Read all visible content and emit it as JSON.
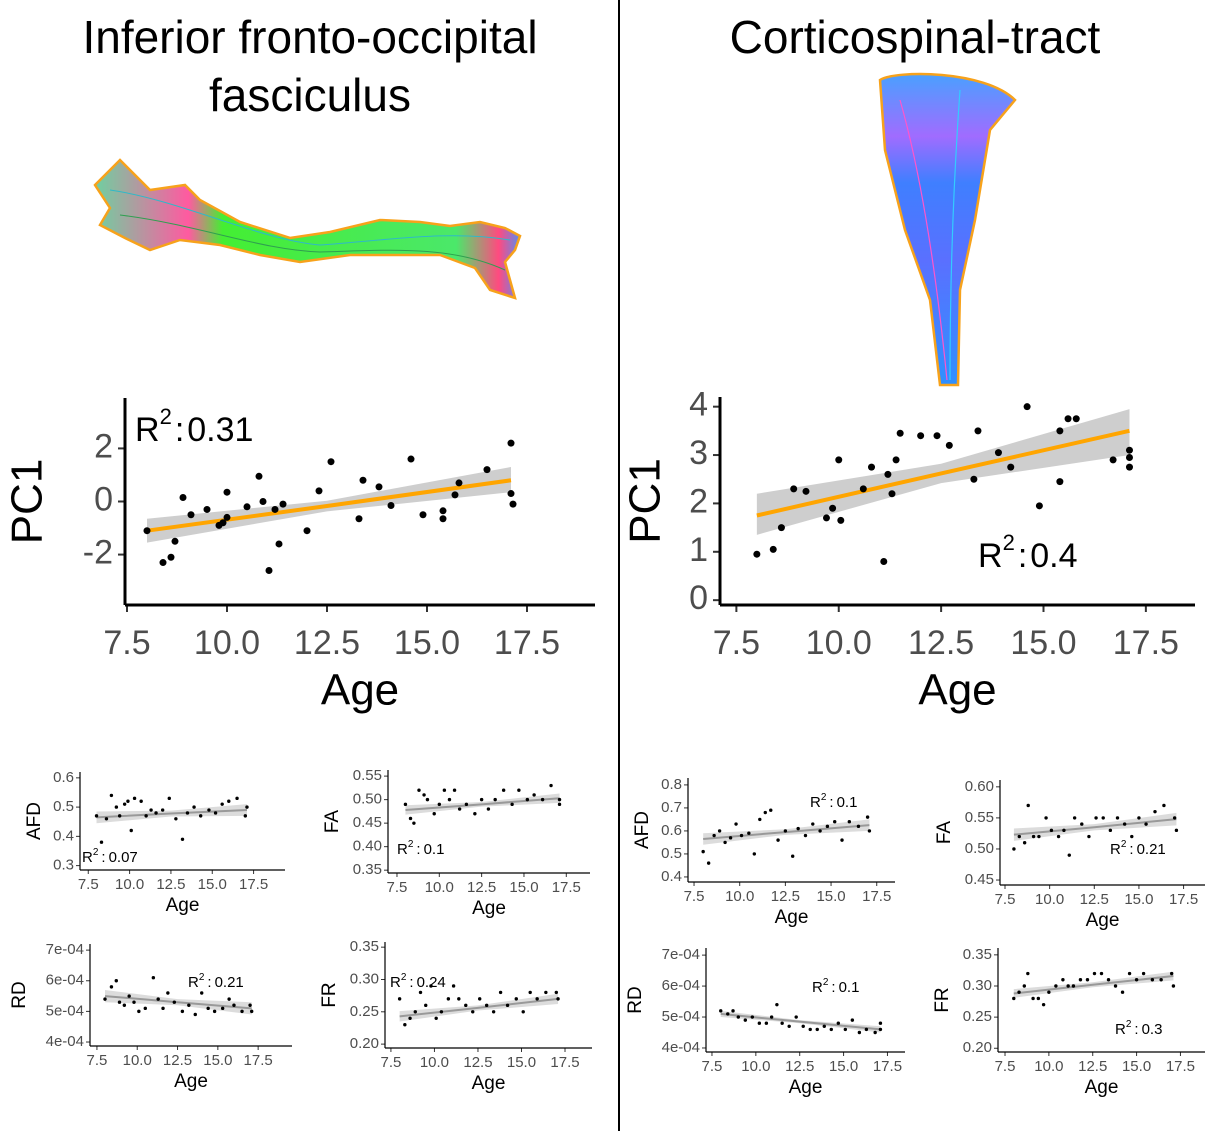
{
  "panels": [
    {
      "title": "Inferior fronto-occipital fasciculus"
    },
    {
      "title": "Corticospinal-tract"
    }
  ],
  "chart_data": [
    {
      "type": "scatter",
      "x_label": "Age",
      "y_label": "PC1",
      "point_color": "#000000",
      "x": [
        8.0,
        8.4,
        8.6,
        8.7,
        8.9,
        9.1,
        9.5,
        9.8,
        9.9,
        10.0,
        10.0,
        10.5,
        10.8,
        10.9,
        11.05,
        11.2,
        11.3,
        11.4,
        12.0,
        12.3,
        12.6,
        13.3,
        13.4,
        13.8,
        14.1,
        14.6,
        14.9,
        15.4,
        15.4,
        15.7,
        15.8,
        16.5,
        17.1,
        17.1,
        17.15
      ],
      "y": [
        -1.1,
        -2.3,
        -2.1,
        -1.5,
        0.15,
        -0.5,
        -0.3,
        -0.9,
        -0.8,
        0.35,
        -0.6,
        -0.2,
        0.95,
        0.0,
        -2.6,
        -0.3,
        -1.6,
        -0.1,
        -1.1,
        0.4,
        1.5,
        -0.65,
        0.8,
        0.55,
        -0.15,
        1.6,
        -0.5,
        -0.35,
        -0.65,
        0.25,
        0.7,
        1.2,
        2.2,
        0.3,
        -0.1
      ],
      "fit": {
        "x": [
          8.0,
          12.5,
          17.1
        ],
        "y": [
          -1.1,
          -0.17,
          0.8
        ],
        "lower": [
          -1.55,
          -0.37,
          0.35
        ],
        "upper": [
          -0.65,
          0.03,
          1.3
        ],
        "color": "#ffa500",
        "band_color": "#bdbdbd"
      },
      "annotation": {
        "label": "R",
        "exponent": "2",
        "separator": ":",
        "value": 0.31
      },
      "xlim": [
        7.45,
        19.2
      ],
      "ylim": [
        -3.9,
        3.9
      ],
      "xticks": [
        7.5,
        {
          "value": 10,
          "label": "10.0"
        },
        12.5,
        {
          "value": 15,
          "label": "15.0"
        },
        17.5
      ],
      "yticks": [
        -2,
        0,
        2
      ]
    },
    {
      "type": "scatter",
      "x_label": "Age",
      "y_label": "PC1",
      "point_color": "#000000",
      "x": [
        8.0,
        8.4,
        8.6,
        8.9,
        9.2,
        9.7,
        9.85,
        10.0,
        10.05,
        10.6,
        10.8,
        11.1,
        11.2,
        11.3,
        11.4,
        11.5,
        12.0,
        12.4,
        12.7,
        13.3,
        13.4,
        13.9,
        14.2,
        14.6,
        14.9,
        15.4,
        15.4,
        15.6,
        15.8,
        16.7,
        17.1,
        17.1,
        17.1
      ],
      "y": [
        0.95,
        1.05,
        1.5,
        2.3,
        2.25,
        1.7,
        1.9,
        2.9,
        1.65,
        2.3,
        2.75,
        0.8,
        2.6,
        2.2,
        2.9,
        3.45,
        3.4,
        3.4,
        3.2,
        2.5,
        3.5,
        3.05,
        2.75,
        4.0,
        1.95,
        2.45,
        3.5,
        3.75,
        3.75,
        2.9,
        3.1,
        2.95,
        2.75
      ],
      "fit": {
        "x": [
          8.0,
          12.5,
          17.1
        ],
        "y": [
          1.75,
          2.62,
          3.5
        ],
        "lower": [
          1.35,
          2.42,
          3.0
        ],
        "upper": [
          2.2,
          2.82,
          3.95
        ],
        "color": "#ffa500",
        "band_color": "#bdbdbd"
      },
      "annotation": {
        "label": "R",
        "exponent": "2",
        "separator": ":",
        "value": 0.4
      },
      "xlim": [
        7.1,
        18.7
      ],
      "ylim": [
        -0.1,
        4.2
      ],
      "xticks": [
        7.5,
        {
          "value": 10,
          "label": "10.0"
        },
        12.5,
        {
          "value": 15,
          "label": "15.0"
        },
        17.5
      ],
      "yticks": [
        0,
        1,
        2,
        3,
        4
      ]
    },
    {
      "type": "scatter",
      "x_label": "Age",
      "y_label": "AFD",
      "point_color": "#000000",
      "x": [
        8.0,
        8.3,
        8.6,
        8.9,
        9.2,
        9.4,
        9.7,
        9.9,
        10.1,
        10.3,
        10.7,
        11.0,
        11.3,
        11.6,
        12.0,
        12.4,
        12.8,
        13.2,
        13.5,
        13.9,
        14.3,
        14.8,
        15.2,
        15.6,
        16.0,
        16.5,
        17.0,
        17.1
      ],
      "y": [
        0.47,
        0.38,
        0.46,
        0.54,
        0.5,
        0.47,
        0.51,
        0.52,
        0.42,
        0.53,
        0.52,
        0.47,
        0.49,
        0.48,
        0.49,
        0.53,
        0.46,
        0.39,
        0.48,
        0.5,
        0.47,
        0.49,
        0.48,
        0.51,
        0.52,
        0.53,
        0.47,
        0.5
      ],
      "fit": {
        "x": [
          8.0,
          12.5,
          17.1
        ],
        "y": [
          0.465,
          0.478,
          0.49
        ],
        "lower": [
          0.445,
          0.468,
          0.47
        ],
        "upper": [
          0.485,
          0.488,
          0.51
        ],
        "color": "#999999",
        "band_color": "#d0d0d0"
      },
      "annotation": {
        "label": "R",
        "exponent": "2",
        "separator": ":",
        "value": 0.07
      },
      "xlim": [
        7.0,
        19.4
      ],
      "ylim": [
        0.285,
        0.62
      ],
      "xticks": [
        7.5,
        {
          "value": 10,
          "label": "10.0"
        },
        12.5,
        {
          "value": 15,
          "label": "15.0"
        },
        17.5
      ],
      "yticks": [
        0.3,
        0.4,
        0.5,
        0.6
      ]
    },
    {
      "type": "scatter",
      "x_label": "Age",
      "y_label": "FA",
      "point_color": "#000000",
      "x": [
        8.0,
        8.3,
        8.5,
        8.8,
        9.1,
        9.3,
        9.7,
        10.0,
        10.3,
        10.6,
        10.9,
        11.2,
        11.6,
        12.1,
        12.5,
        12.9,
        13.3,
        13.8,
        14.3,
        14.7,
        15.2,
        15.6,
        16.1,
        16.6,
        17.1,
        17.1
      ],
      "y": [
        0.49,
        0.46,
        0.45,
        0.52,
        0.51,
        0.5,
        0.47,
        0.49,
        0.52,
        0.5,
        0.52,
        0.48,
        0.49,
        0.47,
        0.5,
        0.48,
        0.5,
        0.52,
        0.49,
        0.52,
        0.5,
        0.51,
        0.5,
        0.53,
        0.5,
        0.49
      ],
      "fit": {
        "x": [
          8.0,
          12.5,
          17.1
        ],
        "y": [
          0.478,
          0.49,
          0.503
        ],
        "lower": [
          0.468,
          0.485,
          0.493
        ],
        "upper": [
          0.488,
          0.495,
          0.513
        ],
        "color": "#999999",
        "band_color": "#d0d0d0"
      },
      "annotation": {
        "label": "R",
        "exponent": "2",
        "separator": ":",
        "value": 0.1
      },
      "xlim": [
        6.97,
        18.9
      ],
      "ylim": [
        0.344,
        0.563
      ],
      "xticks": [
        7.5,
        {
          "value": 10,
          "label": "10.0"
        },
        12.5,
        {
          "value": 15,
          "label": "15.0"
        },
        17.5
      ],
      "yticks": [
        0.35,
        {
          "value": 0.4,
          "label": "0.40"
        },
        0.45,
        {
          "value": 0.5,
          "label": "0.50"
        },
        0.55
      ]
    },
    {
      "type": "scatter",
      "x_label": "Age",
      "y_label": "RD",
      "point_color": "#000000",
      "x": [
        8.0,
        8.4,
        8.7,
        8.9,
        9.2,
        9.5,
        9.8,
        10.1,
        10.5,
        11.0,
        11.3,
        11.6,
        11.9,
        12.3,
        12.8,
        13.2,
        13.6,
        14.0,
        14.4,
        14.8,
        15.3,
        15.7,
        16.0,
        16.5,
        17.0,
        17.1
      ],
      "y": [
        0.00054,
        0.00058,
        0.0006,
        0.00053,
        0.00052,
        0.00055,
        0.00053,
        0.0005,
        0.00051,
        0.00061,
        0.00054,
        0.00051,
        0.00056,
        0.00053,
        0.0005,
        0.00052,
        0.00049,
        0.00056,
        0.00051,
        0.0005,
        0.00051,
        0.00054,
        0.00052,
        0.0005,
        0.00052,
        0.0005
      ],
      "fit": {
        "x": [
          8.0,
          12.5,
          17.1
        ],
        "y": [
          0.00055,
          0.00053,
          0.00051
        ],
        "lower": [
          0.00053,
          0.00052,
          0.00049
        ],
        "upper": [
          0.00057,
          0.00054,
          0.00053
        ],
        "color": "#999999",
        "band_color": "#d0d0d0"
      },
      "annotation": {
        "label": "R",
        "exponent": "2",
        "separator": ":",
        "value": 0.21
      },
      "xlim": [
        7.07,
        19.6
      ],
      "ylim": [
        0.000387,
        0.00072
      ],
      "xticks": [
        7.5,
        {
          "value": 10,
          "label": "10.0"
        },
        12.5,
        {
          "value": 15,
          "label": "15.0"
        },
        17.5
      ],
      "yticks": [
        {
          "value": 0.0004,
          "label": "4e-04"
        },
        {
          "value": 0.0005,
          "label": "5e-04"
        },
        {
          "value": 0.0006,
          "label": "6e-04"
        },
        {
          "value": 0.0007,
          "label": "7e-04"
        }
      ]
    },
    {
      "type": "scatter",
      "x_label": "Age",
      "y_label": "FR",
      "point_color": "#000000",
      "x": [
        8.0,
        8.3,
        8.6,
        8.9,
        9.2,
        9.5,
        9.8,
        10.1,
        10.4,
        10.8,
        11.1,
        11.4,
        11.8,
        12.2,
        12.6,
        13.0,
        13.4,
        13.8,
        14.2,
        14.7,
        15.1,
        15.5,
        15.9,
        16.4,
        17.0,
        17.1
      ],
      "y": [
        0.27,
        0.23,
        0.24,
        0.25,
        0.28,
        0.26,
        0.29,
        0.24,
        0.25,
        0.27,
        0.29,
        0.27,
        0.26,
        0.25,
        0.27,
        0.26,
        0.25,
        0.28,
        0.26,
        0.27,
        0.25,
        0.28,
        0.27,
        0.28,
        0.28,
        0.27
      ],
      "fit": {
        "x": [
          8.0,
          12.5,
          17.1
        ],
        "y": [
          0.243,
          0.256,
          0.27
        ],
        "lower": [
          0.235,
          0.252,
          0.262
        ],
        "upper": [
          0.251,
          0.26,
          0.278
        ],
        "color": "#999999",
        "band_color": "#d0d0d0"
      },
      "annotation": {
        "label": "R",
        "exponent": "2",
        "separator": ":",
        "value": 0.24
      },
      "xlim": [
        7.16,
        19.05
      ],
      "ylim": [
        0.194,
        0.358
      ],
      "xticks": [
        7.5,
        {
          "value": 10,
          "label": "10.0"
        },
        12.5,
        {
          "value": 15,
          "label": "15.0"
        },
        17.5
      ],
      "yticks": [
        {
          "value": 0.2,
          "label": "0.20"
        },
        0.25,
        {
          "value": 0.3,
          "label": "0.30"
        },
        0.35
      ]
    },
    {
      "type": "scatter",
      "x_label": "Age",
      "y_label": "AFD",
      "point_color": "#000000",
      "x": [
        8.0,
        8.3,
        8.6,
        8.9,
        9.2,
        9.5,
        9.8,
        10.1,
        10.5,
        10.8,
        11.1,
        11.4,
        11.7,
        12.1,
        12.5,
        12.9,
        13.2,
        13.6,
        14.0,
        14.4,
        14.8,
        15.2,
        15.6,
        16.0,
        16.5,
        17.0,
        17.1
      ],
      "y": [
        0.51,
        0.46,
        0.58,
        0.6,
        0.55,
        0.57,
        0.63,
        0.58,
        0.59,
        0.5,
        0.65,
        0.68,
        0.69,
        0.56,
        0.6,
        0.49,
        0.61,
        0.58,
        0.63,
        0.6,
        0.62,
        0.64,
        0.56,
        0.64,
        0.62,
        0.66,
        0.6
      ],
      "fit": {
        "x": [
          8.0,
          12.5,
          17.1
        ],
        "y": [
          0.565,
          0.595,
          0.625
        ],
        "lower": [
          0.54,
          0.583,
          0.6
        ],
        "upper": [
          0.59,
          0.607,
          0.65
        ],
        "color": "#999999",
        "band_color": "#d0d0d0"
      },
      "annotation": {
        "label": "R",
        "exponent": "2",
        "separator": ":",
        "value": 0.1
      },
      "xlim": [
        7.17,
        18.5
      ],
      "ylim": [
        0.378,
        0.83
      ],
      "xticks": [
        7.5,
        {
          "value": 10,
          "label": "10.0"
        },
        12.5,
        {
          "value": 15,
          "label": "15.0"
        },
        17.5
      ],
      "yticks": [
        0.4,
        0.5,
        0.6,
        0.7,
        0.8
      ]
    },
    {
      "type": "scatter",
      "x_label": "Age",
      "y_label": "FA",
      "point_color": "#000000",
      "x": [
        8.0,
        8.3,
        8.6,
        8.8,
        9.1,
        9.4,
        9.8,
        10.1,
        10.5,
        10.8,
        11.1,
        11.4,
        11.8,
        12.2,
        12.6,
        13.0,
        13.4,
        13.8,
        14.2,
        14.6,
        15.0,
        15.4,
        15.9,
        16.4,
        17.0,
        17.1
      ],
      "y": [
        0.5,
        0.52,
        0.51,
        0.57,
        0.52,
        0.52,
        0.55,
        0.53,
        0.52,
        0.53,
        0.49,
        0.55,
        0.54,
        0.52,
        0.55,
        0.55,
        0.53,
        0.55,
        0.54,
        0.52,
        0.55,
        0.54,
        0.56,
        0.57,
        0.55,
        0.53
      ],
      "fit": {
        "x": [
          8.0,
          12.5,
          17.1
        ],
        "y": [
          0.523,
          0.535,
          0.548
        ],
        "lower": [
          0.513,
          0.53,
          0.538
        ],
        "upper": [
          0.533,
          0.54,
          0.558
        ],
        "color": "#999999",
        "band_color": "#d0d0d0"
      },
      "annotation": {
        "label": "R",
        "exponent": "2",
        "separator": ":",
        "value": 0.21
      },
      "xlim": [
        7.22,
        18.7
      ],
      "ylim": [
        0.442,
        0.611
      ],
      "xticks": [
        7.5,
        {
          "value": 10,
          "label": "10.0"
        },
        12.5,
        {
          "value": 15,
          "label": "15.0"
        },
        17.5
      ],
      "yticks": [
        0.45,
        {
          "value": 0.5,
          "label": "0.50"
        },
        0.55,
        {
          "value": 0.6,
          "label": "0.60"
        }
      ]
    },
    {
      "type": "scatter",
      "x_label": "Age",
      "y_label": "RD",
      "point_color": "#000000",
      "x": [
        8.0,
        8.4,
        8.7,
        9.0,
        9.4,
        9.8,
        10.2,
        10.6,
        10.9,
        11.2,
        11.5,
        11.9,
        12.3,
        12.7,
        13.1,
        13.5,
        13.9,
        14.3,
        14.7,
        15.1,
        15.5,
        15.9,
        16.3,
        16.8,
        17.1,
        17.1
      ],
      "y": [
        0.00052,
        0.00051,
        0.00052,
        0.0005,
        0.00049,
        0.0005,
        0.00048,
        0.00048,
        0.0005,
        0.00054,
        0.00048,
        0.00047,
        0.0005,
        0.00047,
        0.00046,
        0.00046,
        0.00047,
        0.00046,
        0.00048,
        0.00046,
        0.00049,
        0.00045,
        0.00046,
        0.00045,
        0.00048,
        0.00046
      ],
      "fit": {
        "x": [
          8.0,
          12.5,
          17.1
        ],
        "y": [
          0.00051,
          0.000485,
          0.00046
        ],
        "lower": [
          0.0005,
          0.00048,
          0.00045
        ],
        "upper": [
          0.00052,
          0.00049,
          0.00047
        ],
        "color": "#999999",
        "band_color": "#d0d0d0"
      },
      "annotation": {
        "label": "R",
        "exponent": "2",
        "separator": ":",
        "value": 0.1
      },
      "xlim": [
        7.16,
        18.5
      ],
      "ylim": [
        0.000387,
        0.000723
      ],
      "xticks": [
        7.5,
        {
          "value": 10,
          "label": "10.0"
        },
        12.5,
        {
          "value": 15,
          "label": "15.0"
        },
        17.5
      ],
      "yticks": [
        {
          "value": 0.0004,
          "label": "4e-04"
        },
        {
          "value": 0.0005,
          "label": "5e-04"
        },
        {
          "value": 0.0006,
          "label": "6e-04"
        },
        {
          "value": 0.0007,
          "label": "7e-04"
        }
      ]
    },
    {
      "type": "scatter",
      "x_label": "Age",
      "y_label": "FR",
      "point_color": "#000000",
      "x": [
        8.0,
        8.3,
        8.6,
        8.8,
        9.1,
        9.4,
        9.7,
        10.0,
        10.4,
        10.8,
        11.1,
        11.4,
        11.8,
        12.2,
        12.6,
        13.0,
        13.4,
        13.8,
        14.2,
        14.6,
        15.0,
        15.4,
        15.9,
        16.4,
        17.0,
        17.1
      ],
      "y": [
        0.28,
        0.29,
        0.3,
        0.32,
        0.28,
        0.28,
        0.27,
        0.29,
        0.3,
        0.31,
        0.3,
        0.3,
        0.31,
        0.31,
        0.32,
        0.32,
        0.31,
        0.3,
        0.29,
        0.32,
        0.31,
        0.32,
        0.31,
        0.31,
        0.32,
        0.3
      ],
      "fit": {
        "x": [
          8.0,
          12.5,
          17.1
        ],
        "y": [
          0.288,
          0.302,
          0.316
        ],
        "lower": [
          0.281,
          0.298,
          0.309
        ],
        "upper": [
          0.295,
          0.306,
          0.323
        ],
        "color": "#999999",
        "band_color": "#d0d0d0"
      },
      "annotation": {
        "label": "R",
        "exponent": "2",
        "separator": ":",
        "value": 0.3
      },
      "xlim": [
        7.1,
        18.9
      ],
      "ylim": [
        0.194,
        0.361
      ],
      "xticks": [
        7.5,
        {
          "value": 10,
          "label": "10.0"
        },
        12.5,
        {
          "value": 15,
          "label": "15.0"
        },
        17.5
      ],
      "yticks": [
        {
          "value": 0.2,
          "label": "0.20"
        },
        0.25,
        {
          "value": 0.3,
          "label": "0.30"
        },
        0.35
      ]
    }
  ]
}
